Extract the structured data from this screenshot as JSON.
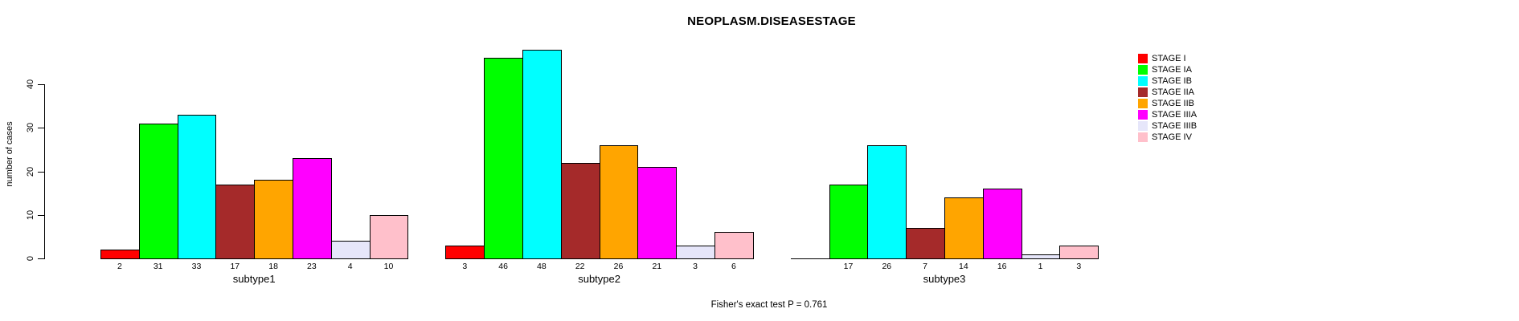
{
  "chart_data": {
    "type": "bar",
    "title": "NEOPLASM.DISEASESTAGE",
    "ylabel": "number of cases",
    "yticks": [
      0,
      10,
      20,
      30,
      40
    ],
    "ylim": [
      0,
      48
    ],
    "grid": false,
    "legend_position": "right",
    "categories": [
      "subtype1",
      "subtype2",
      "subtype3"
    ],
    "series": [
      {
        "name": "STAGE I",
        "color": "#FF0000",
        "values": [
          2,
          3,
          0
        ]
      },
      {
        "name": "STAGE IA",
        "color": "#00FF00",
        "values": [
          31,
          46,
          17
        ]
      },
      {
        "name": "STAGE IB",
        "color": "#00FFFF",
        "values": [
          33,
          48,
          26
        ]
      },
      {
        "name": "STAGE IIA",
        "color": "#A52A2A",
        "values": [
          17,
          22,
          7
        ]
      },
      {
        "name": "STAGE IIB",
        "color": "#FFA500",
        "values": [
          18,
          26,
          14
        ]
      },
      {
        "name": "STAGE IIIA",
        "color": "#FF00FF",
        "values": [
          23,
          21,
          16
        ]
      },
      {
        "name": "STAGE IIIB",
        "color": "#E6E6FA",
        "values": [
          4,
          3,
          1
        ]
      },
      {
        "name": "STAGE IV",
        "color": "#FFC0CB",
        "values": [
          10,
          6,
          3
        ]
      }
    ],
    "bar_value_labels": [
      [
        "2",
        "31",
        "33",
        "17",
        "18",
        "23",
        "4",
        "10"
      ],
      [
        "3",
        "46",
        "48",
        "22",
        "26",
        "21",
        "3",
        "6"
      ],
      [
        "",
        "17",
        "26",
        "7",
        "14",
        "16",
        "1",
        "3"
      ]
    ],
    "footnote": "Fisher's exact test P = 0.761"
  }
}
